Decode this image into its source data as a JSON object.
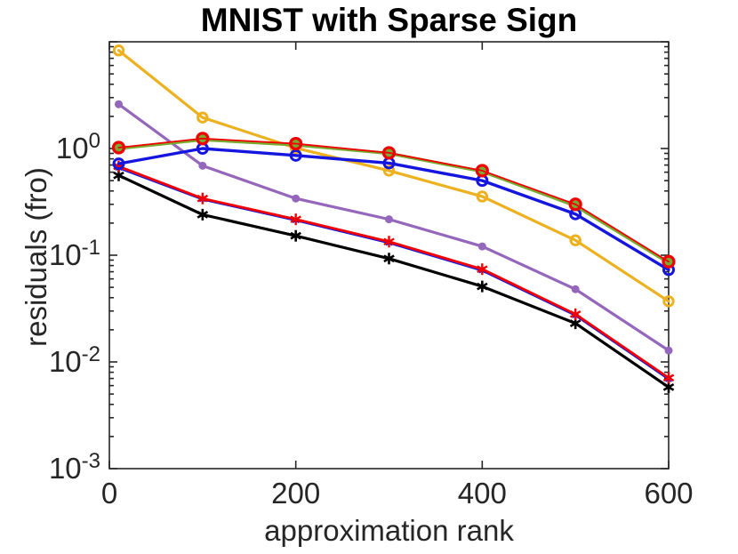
{
  "chart_data": {
    "type": "line",
    "title": "MNIST with Sparse Sign",
    "xlabel": "approximation rank",
    "ylabel": "residuals (fro)",
    "x": [
      10,
      100,
      200,
      300,
      400,
      500,
      600
    ],
    "xlim": [
      0,
      600
    ],
    "ylim_log10": [
      -3,
      1
    ],
    "yscale": "log",
    "grid": false,
    "legend": null,
    "xticks": {
      "values": [
        0,
        200,
        400,
        600
      ],
      "labels": [
        "0",
        "200",
        "400",
        "600"
      ]
    },
    "yticks": [
      {
        "value_log10": 0,
        "base": "10",
        "exp": "0"
      },
      {
        "value_log10": -1,
        "base": "10",
        "exp": "-1"
      },
      {
        "value_log10": -2,
        "base": "10",
        "exp": "-2"
      },
      {
        "value_log10": -3,
        "base": "10",
        "exp": "-3"
      }
    ],
    "axis_color": "#262626",
    "series": [
      {
        "id": "purple-dots",
        "color": "#9467BD",
        "marker": "dot",
        "line_width": 3.2,
        "marker_size": 4.5,
        "values": [
          2.6,
          0.69,
          0.34,
          0.217,
          0.121,
          0.048,
          0.0128
        ]
      },
      {
        "id": "orange-circles",
        "color": "#EDB120",
        "marker": "circle-open",
        "line_width": 3.2,
        "marker_size": 5.2,
        "marker_stroke": 3,
        "values": [
          8.3,
          1.95,
          1.01,
          0.62,
          0.355,
          0.138,
          0.037
        ]
      },
      {
        "id": "blue-thin-line",
        "color": "#1515E0",
        "marker": "asterisk",
        "line_width": 1.4,
        "marker_size": 4,
        "marker_stroke": 1.4,
        "values": [
          0.65,
          0.33,
          0.21,
          0.129,
          0.071,
          0.027,
          0.0068
        ]
      },
      {
        "id": "black-asterisks",
        "color": "#000000",
        "marker": "asterisk",
        "line_width": 3.2,
        "marker_size": 6.5,
        "marker_stroke": 2.6,
        "values": [
          0.56,
          0.24,
          0.152,
          0.093,
          0.051,
          0.023,
          0.0058
        ]
      },
      {
        "id": "red-asterisks",
        "color": "#F00000",
        "marker": "asterisk",
        "line_width": 2.8,
        "marker_size": 6.5,
        "marker_stroke": 2.4,
        "values": [
          0.68,
          0.34,
          0.217,
          0.134,
          0.074,
          0.028,
          0.0071
        ]
      },
      {
        "id": "blue-circles",
        "color": "#1515E0",
        "marker": "circle-open",
        "line_width": 3.4,
        "marker_size": 5.5,
        "marker_stroke": 3,
        "values": [
          0.72,
          1.0,
          0.86,
          0.73,
          0.5,
          0.243,
          0.073
        ]
      },
      {
        "id": "green-filled-circles",
        "color": "#77AC30",
        "marker": "circle-filled",
        "line_width": 3.6,
        "marker_size": 6,
        "values": [
          1.0,
          1.21,
          1.08,
          0.9,
          0.61,
          0.29,
          0.085
        ]
      },
      {
        "id": "red-circles",
        "color": "#F00000",
        "marker": "circle-open",
        "line_width": 1.8,
        "marker_size": 6,
        "marker_stroke": 3.2,
        "values": [
          1.02,
          1.24,
          1.11,
          0.91,
          0.62,
          0.3,
          0.087
        ]
      }
    ]
  }
}
